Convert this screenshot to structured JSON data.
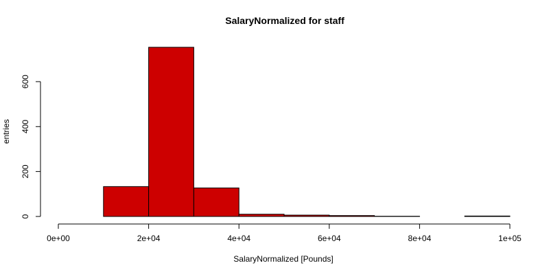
{
  "chart_data": {
    "type": "bar",
    "title": "SalaryNormalized for staff",
    "xlabel": "SalaryNormalized [Pounds]",
    "ylabel": "entries",
    "bin_edges": [
      0,
      10000,
      20000,
      30000,
      40000,
      50000,
      60000,
      70000,
      80000,
      90000,
      100000
    ],
    "values": [
      0,
      133,
      753,
      127,
      10,
      6,
      4,
      1,
      0,
      2
    ],
    "xlim": [
      0,
      100000
    ],
    "ylim": [
      0,
      753
    ],
    "x_ticks": [
      0,
      20000,
      40000,
      60000,
      80000,
      100000
    ],
    "x_tick_labels": [
      "0e+00",
      "2e+04",
      "4e+04",
      "6e+04",
      "8e+04",
      "1e+05"
    ],
    "y_ticks": [
      0,
      200,
      400,
      600
    ],
    "y_tick_labels": [
      "0",
      "200",
      "400",
      "600"
    ],
    "bar_color": "#cd0000",
    "grid": false
  }
}
